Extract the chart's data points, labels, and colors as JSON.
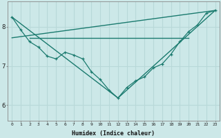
{
  "xlabel": "Humidex (Indice chaleur)",
  "background_color": "#cce8e8",
  "grid_color": "#aad4d4",
  "line_color": "#1a7a6e",
  "xlim": [
    -0.5,
    23.5
  ],
  "ylim": [
    5.6,
    8.65
  ],
  "xticks": [
    0,
    1,
    2,
    3,
    4,
    5,
    6,
    7,
    8,
    9,
    10,
    11,
    12,
    13,
    14,
    15,
    16,
    17,
    18,
    19,
    20,
    21,
    22,
    23
  ],
  "yticks": [
    6,
    7,
    8
  ],
  "line1_x": [
    0,
    1,
    2,
    3,
    4,
    5,
    6,
    7,
    8,
    9,
    10,
    11,
    12,
    13,
    14,
    15,
    16,
    17,
    18,
    19,
    20,
    21,
    22,
    23
  ],
  "line1_y": [
    8.25,
    7.92,
    7.62,
    7.48,
    7.25,
    7.18,
    7.35,
    7.28,
    7.18,
    6.85,
    6.65,
    6.38,
    6.18,
    6.45,
    6.62,
    6.72,
    6.95,
    7.05,
    7.3,
    7.62,
    7.88,
    8.05,
    8.35,
    8.42
  ],
  "line2_x": [
    2,
    3,
    4,
    5,
    6,
    7,
    8,
    9,
    10,
    11,
    12,
    13,
    14,
    15,
    16,
    17,
    18,
    19,
    20
  ],
  "line2_y": [
    7.72,
    7.72,
    7.72,
    7.72,
    7.72,
    7.72,
    7.72,
    7.72,
    7.72,
    7.72,
    7.72,
    7.72,
    7.72,
    7.72,
    7.72,
    7.72,
    7.72,
    7.72,
    7.72
  ],
  "line3_x": [
    0,
    23
  ],
  "line3_y": [
    7.72,
    8.42
  ],
  "line4_x": [
    0,
    12,
    23
  ],
  "line4_y": [
    8.25,
    6.18,
    8.42
  ]
}
